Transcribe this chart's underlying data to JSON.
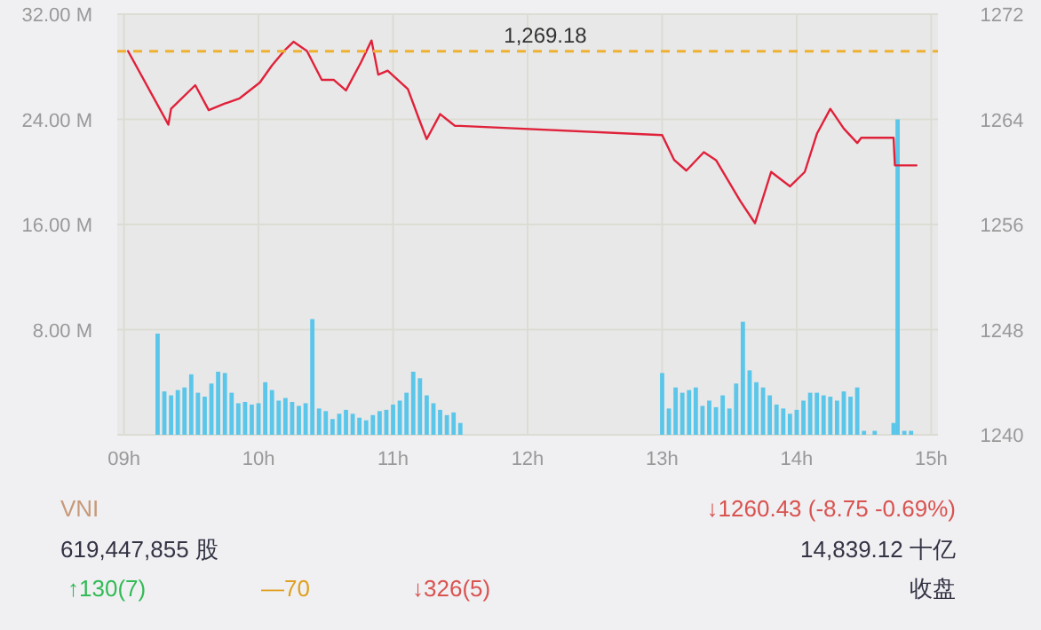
{
  "chart_data": {
    "type": "bar",
    "grid": true,
    "xlim": [
      8.95,
      15.05
    ],
    "xticks": [
      {
        "value": 9,
        "label": "09h"
      },
      {
        "value": 10,
        "label": "10h"
      },
      {
        "value": 11,
        "label": "11h"
      },
      {
        "value": 12,
        "label": "12h"
      },
      {
        "value": 13,
        "label": "13h"
      },
      {
        "value": 14,
        "label": "14h"
      },
      {
        "value": 15,
        "label": "15h"
      }
    ],
    "ylim": [
      0,
      32
    ],
    "yticks": [
      {
        "value": 0,
        "label": null
      },
      {
        "value": 8,
        "label": "8.00 M"
      },
      {
        "value": 16,
        "label": "16.00 M"
      },
      {
        "value": 24,
        "label": "24.00 M"
      },
      {
        "value": 32,
        "label": "32.00 M"
      }
    ],
    "y2lim": [
      1240,
      1272
    ],
    "y2ticks": [
      1240,
      1248,
      1256,
      1264,
      1272
    ],
    "series": [
      {
        "color": "#5ac6ea",
        "x": [
          9.25,
          9.3,
          9.35,
          9.4,
          9.45,
          9.5,
          9.55,
          9.6,
          9.65,
          9.7,
          9.75,
          9.8,
          9.85,
          9.9,
          9.95,
          10,
          10.05,
          10.1,
          10.15,
          10.2,
          10.25,
          10.3,
          10.35,
          10.4,
          10.45,
          10.5,
          10.55,
          10.6,
          10.65,
          10.7,
          10.75,
          10.8,
          10.85,
          10.9,
          10.95,
          11,
          11.05,
          11.1,
          11.15,
          11.2,
          11.25,
          11.3,
          11.35,
          11.4,
          11.45,
          11.5,
          13,
          13.05,
          13.1,
          13.15,
          13.2,
          13.25,
          13.3,
          13.35,
          13.4,
          13.45,
          13.5,
          13.55,
          13.6,
          13.65,
          13.7,
          13.75,
          13.8,
          13.85,
          13.9,
          13.95,
          14,
          14.05,
          14.1,
          14.15,
          14.2,
          14.25,
          14.3,
          14.35,
          14.4,
          14.45,
          14.5,
          14.58,
          14.72,
          14.75,
          14.8,
          14.85
        ],
        "values": [
          7.7,
          3.3,
          3.0,
          3.4,
          3.6,
          4.6,
          3.2,
          2.9,
          3.9,
          4.8,
          4.7,
          3.2,
          2.4,
          2.5,
          2.3,
          2.4,
          4.0,
          3.4,
          2.6,
          2.8,
          2.5,
          2.2,
          2.4,
          8.8,
          2.0,
          1.8,
          1.2,
          1.6,
          1.9,
          1.6,
          1.3,
          1.1,
          1.5,
          1.8,
          1.9,
          2.3,
          2.6,
          3.2,
          4.8,
          4.3,
          3.0,
          2.4,
          1.9,
          1.5,
          1.7,
          0.9,
          4.7,
          2.0,
          3.6,
          3.2,
          3.4,
          3.6,
          2.2,
          2.6,
          2.1,
          3.0,
          2.0,
          3.9,
          8.6,
          4.9,
          4.0,
          3.6,
          3.0,
          2.3,
          2.0,
          1.6,
          1.9,
          2.6,
          3.2,
          3.2,
          3.0,
          2.9,
          2.6,
          3.3,
          2.9,
          3.6,
          0.3,
          0.3,
          0.9,
          24.0,
          0.3,
          0.3
        ]
      },
      {
        "type": "line",
        "axis": "y2",
        "color": "#e0213a",
        "x": [
          9.03,
          9.33,
          9.35,
          9.53,
          9.63,
          9.75,
          9.86,
          10.01,
          10.1,
          10.19,
          10.26,
          10.36,
          10.47,
          10.56,
          10.65,
          10.76,
          10.84,
          10.89,
          10.96,
          11.11,
          11.19,
          11.25,
          11.35,
          11.46,
          11.5,
          13.0,
          13.09,
          13.18,
          13.31,
          13.4,
          13.58,
          13.69,
          13.81,
          13.95,
          14.06,
          14.15,
          14.25,
          14.35,
          14.45,
          14.48,
          14.72,
          14.73,
          14.89
        ],
        "values": [
          1269.2,
          1263.6,
          1264.8,
          1266.6,
          1264.7,
          1265.2,
          1265.6,
          1266.8,
          1268.1,
          1269.2,
          1269.9,
          1269.2,
          1267.0,
          1267.0,
          1266.2,
          1268.3,
          1270.0,
          1267.4,
          1267.7,
          1266.3,
          1264.1,
          1262.5,
          1264.4,
          1263.5,
          1263.5,
          1262.8,
          1260.9,
          1260.1,
          1261.5,
          1260.9,
          1257.8,
          1256.1,
          1260.0,
          1258.9,
          1260.0,
          1262.9,
          1264.8,
          1263.3,
          1262.2,
          1262.6,
          1262.6,
          1260.5,
          1260.5
        ]
      }
    ],
    "ref_lines": [
      {
        "axis": "y2",
        "value": 1269.18,
        "label": "1,269.18",
        "color": "#f0b030",
        "line_style": "dashed"
      }
    ],
    "annotations": [
      "VNI",
      "619,447,855 股",
      "↑130(7)",
      "—70",
      "↓326(5)",
      "↓1260.43 (-8.75 -0.69%)",
      "14,839.12 十亿",
      "收盘"
    ]
  }
}
